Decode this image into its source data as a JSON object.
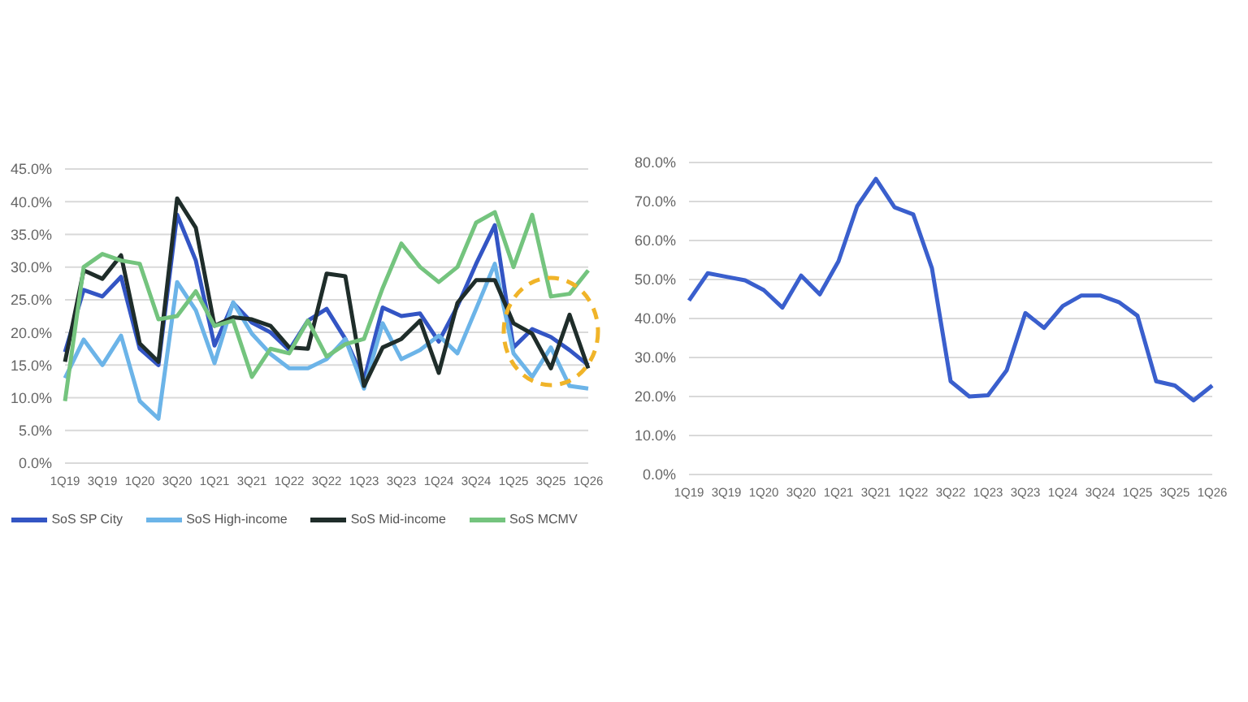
{
  "chart_data": [
    {
      "type": "line",
      "categories": [
        "1Q19",
        null,
        "3Q19",
        null,
        "1Q20",
        null,
        "3Q20",
        null,
        "1Q21",
        null,
        "3Q21",
        null,
        "1Q22",
        null,
        "3Q22",
        null,
        "1Q23",
        null,
        "3Q23",
        null,
        "1Q24",
        null,
        "3Q24",
        null,
        "1Q25",
        null,
        "3Q25",
        null,
        "1Q26"
      ],
      "series": [
        {
          "name": "SoS SP City",
          "color": "#3355c4",
          "values": [
            17,
            26.5,
            25.5,
            28.5,
            17.5,
            15,
            38,
            31,
            18,
            24.5,
            21.5,
            20,
            17.3,
            21.8,
            23.6,
            19,
            12.7,
            23.8,
            22.5,
            22.9,
            18.6,
            24,
            30.5,
            36.4,
            17.7,
            20.5,
            19.3,
            17.3,
            15
          ]
        },
        {
          "name": "SoS High-income",
          "color": "#6cb4e8",
          "values": [
            13,
            18.9,
            15,
            19.5,
            9.5,
            6.8,
            27.7,
            23.4,
            15.3,
            24.6,
            19.8,
            16.7,
            14.5,
            14.5,
            15.9,
            19,
            11.4,
            21.4,
            15.9,
            17.3,
            19.5,
            16.8,
            23.6,
            30.5,
            16.8,
            13.2,
            17.7,
            11.8,
            11.4
          ]
        },
        {
          "name": "SoS Mid-income",
          "color": "#1f2d2a",
          "values": [
            15.5,
            29.5,
            28.2,
            31.8,
            18.3,
            15.5,
            40.5,
            36,
            21,
            22.3,
            22,
            21,
            17.7,
            17.5,
            29,
            28.6,
            11.8,
            17.7,
            19,
            21.8,
            13.8,
            24.5,
            28,
            28,
            21.4,
            19.8,
            14.5,
            22.7,
            14.5
          ]
        },
        {
          "name": "SoS MCMV",
          "color": "#74c47e",
          "values": [
            9.5,
            30,
            32,
            31,
            30.5,
            22,
            22.5,
            26.3,
            21,
            21.8,
            13.2,
            17.5,
            16.8,
            21.8,
            16.3,
            18.2,
            19,
            26.8,
            33.6,
            30,
            27.7,
            30,
            36.8,
            38.4,
            30,
            38,
            25.5,
            25.9,
            29.5
          ]
        }
      ],
      "ylim": [
        0,
        45
      ],
      "yticks": [
        {
          "value": 0,
          "label": "0.0%"
        },
        {
          "value": 5,
          "label": "5.0%"
        },
        {
          "value": 10,
          "label": "10.0%"
        },
        {
          "value": 15,
          "label": "15.0%"
        },
        {
          "value": 20,
          "label": "20.0%"
        },
        {
          "value": 25,
          "label": "25.0%"
        },
        {
          "value": 30,
          "label": "30.0%"
        },
        {
          "value": 35,
          "label": "35.0%"
        },
        {
          "value": 40,
          "label": "40.0%"
        },
        {
          "value": 45,
          "label": "45.0%"
        }
      ],
      "grid": "y",
      "legend": "bottom",
      "marker": "none"
    },
    {
      "type": "line",
      "categories": [
        "1Q19",
        null,
        "3Q19",
        null,
        "1Q20",
        null,
        "3Q20",
        null,
        "1Q21",
        null,
        "3Q21",
        null,
        "1Q22",
        null,
        "3Q22",
        null,
        "1Q23",
        null,
        "3Q23",
        null,
        "1Q24",
        null,
        "3Q24",
        null,
        "1Q25",
        null,
        "3Q25",
        null,
        "1Q26"
      ],
      "series": [
        {
          "color": "#3a5fcd",
          "values": [
            44.6,
            51.6,
            50.7,
            49.8,
            47.3,
            42.8,
            51,
            46.2,
            54.7,
            68.8,
            75.8,
            68.5,
            66.7,
            52.9,
            23.9,
            20,
            20.3,
            26.7,
            41.4,
            37.6,
            43.2,
            45.9,
            45.9,
            44.2,
            40.7,
            23.9,
            22.8,
            19,
            22.8
          ]
        }
      ],
      "ylim": [
        0,
        80
      ],
      "yticks": [
        {
          "value": 0,
          "label": "0.0%"
        },
        {
          "value": 10,
          "label": "10.0%"
        },
        {
          "value": 20,
          "label": "20.0%"
        },
        {
          "value": 30,
          "label": "30.0%"
        },
        {
          "value": 40,
          "label": "40.0%"
        },
        {
          "value": 50,
          "label": "50.0%"
        },
        {
          "value": 60,
          "label": "60.0%"
        },
        {
          "value": 70,
          "label": "70.0%"
        },
        {
          "value": 80,
          "label": "80.0%"
        }
      ],
      "grid": "y",
      "legend": false,
      "marker": "none"
    }
  ]
}
